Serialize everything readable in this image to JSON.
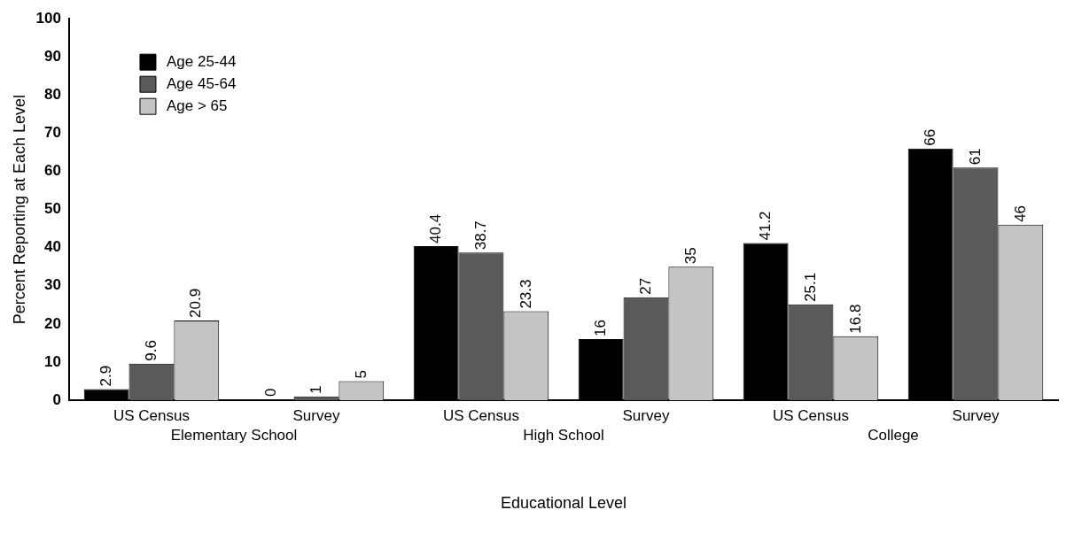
{
  "chart_data": {
    "type": "bar",
    "xlabel": "Educational Level",
    "ylabel": "Percent Reporting at Each Level",
    "categories": [
      "US Census",
      "Survey",
      "US Census",
      "Survey",
      "US Census",
      "Survey"
    ],
    "series": [
      {
        "name": "Age 25-44",
        "color": "#000000",
        "values": [
          2.9,
          0,
          40.4,
          16,
          41.2,
          66
        ]
      },
      {
        "name": "Age 45-64",
        "color": "#5a5a5a",
        "values": [
          9.6,
          1,
          38.7,
          27,
          25.1,
          61
        ]
      },
      {
        "name": "Age > 65",
        "color": "#c4c4c4",
        "values": [
          20.9,
          5,
          23.3,
          35,
          16.8,
          46
        ]
      }
    ],
    "ylim": [
      0,
      100
    ],
    "yticks": [
      0,
      10,
      20,
      30,
      40,
      50,
      60,
      70,
      80,
      90,
      100
    ],
    "annotations": [
      "Elementary School",
      "High School",
      "College"
    ],
    "data_labels": true,
    "grid": false,
    "legend": "top left"
  }
}
